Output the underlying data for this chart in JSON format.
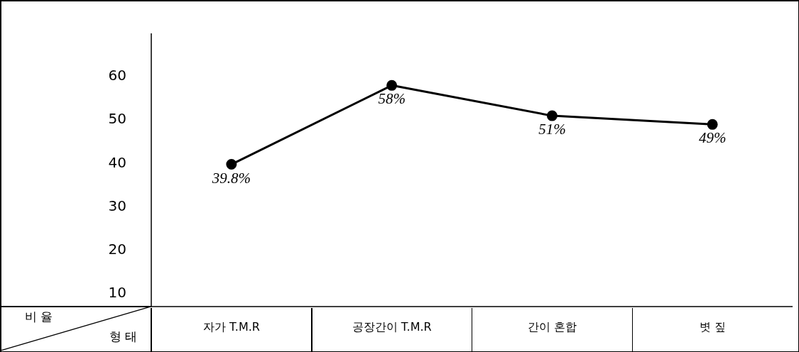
{
  "chart_data": {
    "type": "line",
    "xlabel": "형 태",
    "ylabel": "비 율",
    "categories": [
      "자가 T.M.R",
      "공장간이 T.M.R",
      "간이 혼합",
      "볏 짚"
    ],
    "series": [
      {
        "color": "#000000",
        "values": [
          39.8,
          58,
          51,
          49
        ],
        "value_labels": [
          "39.8%",
          "58%",
          "51%",
          "49%"
        ]
      }
    ],
    "ylim": [
      7,
      70
    ],
    "yticks": [
      10,
      20,
      30,
      40,
      50,
      60
    ],
    "grid": false,
    "legend": false,
    "marker": "circle",
    "line_style": "solid"
  }
}
